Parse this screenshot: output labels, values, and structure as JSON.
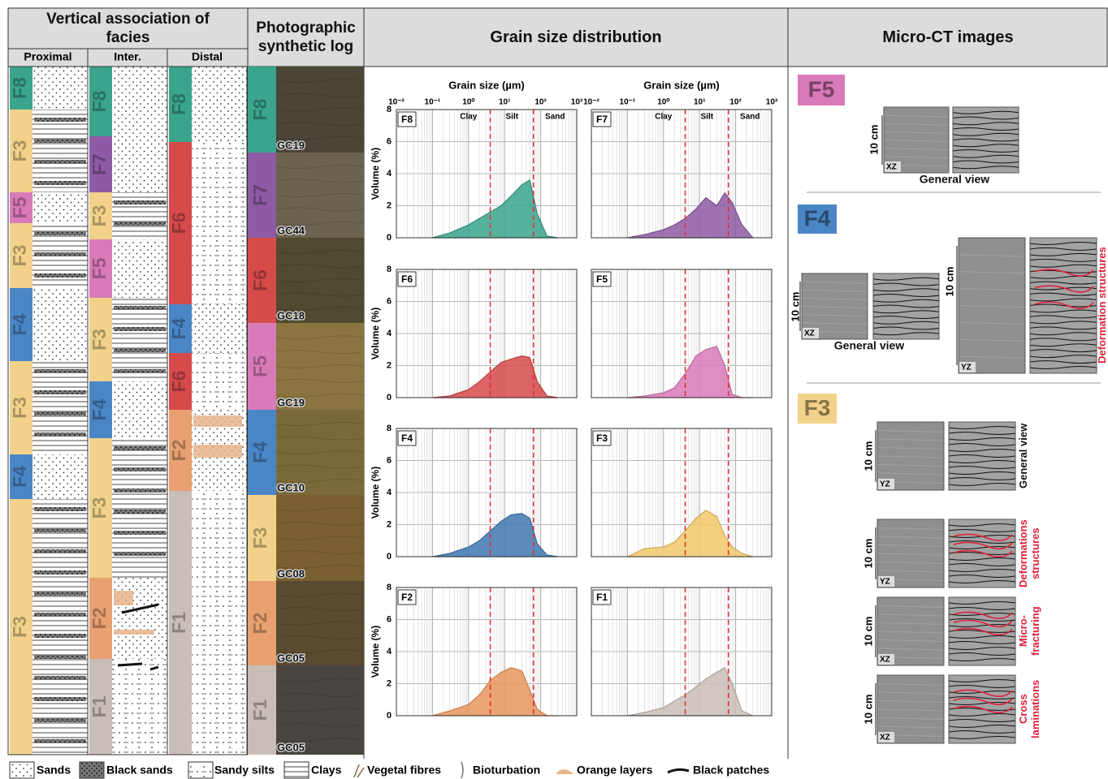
{
  "headers": {
    "facies": "Vertical association of facies",
    "photo": "Photographic synthetic log",
    "grain": "Grain size distribution",
    "microct": "Micro-CT images"
  },
  "facies_colors": {
    "F8": "#3aa58c",
    "F7": "#8e5aa5",
    "F6": "#d64a4a",
    "F5": "#d97ab8",
    "F4": "#4a86c5",
    "F3": "#f2d28a",
    "F2": "#e8a070",
    "F1": "#c9bdb8"
  },
  "facies_log": {
    "columns": [
      {
        "name": "Proximal",
        "units": [
          "F8",
          "F3",
          "F5",
          "F3",
          "F4",
          "F3",
          "F4",
          "F3"
        ]
      },
      {
        "name": "Inter.",
        "units": [
          "F8",
          "F7",
          "F3",
          "F5",
          "F3",
          "F4",
          "F3",
          "F2",
          "F1"
        ]
      },
      {
        "name": "Distal",
        "units": [
          "F8",
          "F6",
          "F4",
          "F6",
          "F2",
          "F1"
        ]
      }
    ]
  },
  "photo_log": {
    "units": [
      {
        "facies": "F8",
        "sample": "GC19"
      },
      {
        "facies": "F7",
        "sample": "GC44"
      },
      {
        "facies": "F6",
        "sample": "GC18"
      },
      {
        "facies": "F5",
        "sample": "GC19"
      },
      {
        "facies": "F4",
        "sample": "GC10"
      },
      {
        "facies": "F3",
        "sample": "GC08"
      },
      {
        "facies": "F2",
        "sample": "GC05"
      },
      {
        "facies": "F1",
        "sample": "GC05"
      }
    ]
  },
  "chart_data": [
    {
      "type": "area",
      "label": "F8",
      "color": "#3aa58c",
      "x_label": "Grain size (µm)",
      "y_label": "Volume (%)",
      "classes": [
        "Clay",
        "Silt",
        "Sand"
      ],
      "x": [
        0.1,
        0.3,
        1,
        2,
        4,
        8,
        15,
        30,
        50,
        80,
        150,
        300
      ],
      "values": [
        0,
        0.3,
        0.8,
        1.2,
        1.6,
        2.0,
        2.6,
        3.3,
        3.6,
        1.5,
        0.1,
        0
      ],
      "xlim": [
        0.01,
        1000
      ],
      "ylim": [
        0,
        8
      ],
      "log_x": true,
      "grid": true,
      "class_limits": [
        4,
        63
      ],
      "class_limit_color": "#e03030",
      "xticks": [
        {
          "value": 0.01,
          "label": "10⁻²"
        },
        {
          "value": 0.1,
          "label": "10⁻¹"
        },
        {
          "value": 1,
          "label": "10⁰"
        },
        {
          "value": 10,
          "label": "10¹"
        },
        {
          "value": 100,
          "label": "10²"
        },
        {
          "value": 1000,
          "label": "10³"
        }
      ],
      "yticks": [
        0,
        2,
        4,
        6,
        8
      ]
    },
    {
      "type": "area",
      "label": "F7",
      "color": "#8e5aa5",
      "x_label": "Grain size (µm)",
      "classes": [
        "Clay",
        "Silt",
        "Sand"
      ],
      "x": [
        0.1,
        0.3,
        1,
        2,
        4,
        8,
        15,
        30,
        50,
        80,
        150,
        300
      ],
      "values": [
        0,
        0.2,
        0.5,
        0.8,
        1.2,
        1.8,
        2.5,
        2.0,
        2.8,
        2.2,
        0.8,
        0
      ],
      "xlim": [
        0.01,
        1000
      ],
      "ylim": [
        0,
        8
      ],
      "log_x": true,
      "grid": true,
      "class_limits": [
        4,
        63
      ],
      "class_limit_color": "#e03030",
      "xticks": [
        {
          "value": 0.01,
          "label": "10⁻²"
        },
        {
          "value": 0.1,
          "label": "10⁻¹"
        },
        {
          "value": 1,
          "label": "10⁰"
        },
        {
          "value": 10,
          "label": "10¹"
        },
        {
          "value": 100,
          "label": "10²"
        },
        {
          "value": 1000,
          "label": "10³"
        }
      ],
      "yticks": [
        0,
        2,
        4,
        6,
        8
      ]
    },
    {
      "type": "area",
      "label": "F6",
      "color": "#d64a4a",
      "y_label": "Volume (%)",
      "x": [
        0.1,
        0.3,
        1,
        2,
        4,
        8,
        15,
        30,
        50,
        80,
        150,
        300
      ],
      "values": [
        0,
        0.1,
        0.5,
        1.0,
        1.6,
        2.2,
        2.4,
        2.6,
        2.5,
        1.0,
        0.1,
        0
      ],
      "xlim": [
        0.01,
        1000
      ],
      "ylim": [
        0,
        8
      ],
      "log_x": true,
      "grid": true,
      "class_limits": [
        4,
        63
      ],
      "class_limit_color": "#e03030",
      "xticks": [
        0.01,
        0.1,
        1,
        10,
        100,
        1000
      ],
      "yticks": [
        0,
        2,
        4,
        6,
        8
      ]
    },
    {
      "type": "area",
      "label": "F5",
      "color": "#d97ab8",
      "x": [
        0.1,
        0.3,
        1,
        2,
        4,
        8,
        15,
        30,
        50,
        80,
        150,
        300
      ],
      "values": [
        0,
        0.1,
        0.3,
        0.6,
        1.5,
        2.6,
        3.0,
        3.2,
        2.0,
        0.2,
        0,
        0
      ],
      "xlim": [
        0.01,
        1000
      ],
      "ylim": [
        0,
        8
      ],
      "log_x": true,
      "grid": true,
      "class_limits": [
        4,
        63
      ],
      "class_limit_color": "#e03030",
      "xticks": [
        0.01,
        0.1,
        1,
        10,
        100,
        1000
      ],
      "yticks": [
        0,
        2,
        4,
        6,
        8
      ]
    },
    {
      "type": "area",
      "label": "F4",
      "color": "#3f78b0",
      "y_label": "Volume (%)",
      "x": [
        0.1,
        0.3,
        1,
        2,
        4,
        8,
        15,
        30,
        50,
        80,
        150,
        300
      ],
      "values": [
        0,
        0.2,
        0.6,
        1.0,
        1.6,
        2.2,
        2.6,
        2.7,
        2.4,
        0.8,
        0.1,
        0
      ],
      "xlim": [
        0.01,
        1000
      ],
      "ylim": [
        0,
        8
      ],
      "log_x": true,
      "grid": true,
      "class_limits": [
        4,
        63
      ],
      "class_limit_color": "#e03030",
      "xticks": [
        0.01,
        0.1,
        1,
        10,
        100,
        1000
      ],
      "yticks": [
        0,
        2,
        4,
        6,
        8
      ]
    },
    {
      "type": "area",
      "label": "F3",
      "color": "#f2c96a",
      "x": [
        0.1,
        0.3,
        1,
        2,
        4,
        8,
        15,
        30,
        50,
        80,
        150,
        300
      ],
      "values": [
        0,
        0.5,
        0.6,
        0.9,
        1.6,
        2.4,
        2.9,
        2.5,
        1.3,
        0.6,
        0.2,
        0
      ],
      "xlim": [
        0.01,
        1000
      ],
      "ylim": [
        0,
        8
      ],
      "log_x": true,
      "grid": true,
      "class_limits": [
        4,
        63
      ],
      "class_limit_color": "#e03030",
      "xticks": [
        0.01,
        0.1,
        1,
        10,
        100,
        1000
      ],
      "yticks": [
        0,
        2,
        4,
        6,
        8
      ]
    },
    {
      "type": "area",
      "label": "F2",
      "color": "#e8965e",
      "y_label": "Volume (%)",
      "x": [
        0.1,
        0.3,
        1,
        2,
        4,
        8,
        15,
        30,
        50,
        80,
        150,
        300
      ],
      "values": [
        0,
        0.3,
        0.7,
        1.3,
        2.2,
        2.7,
        3.0,
        2.8,
        1.6,
        0.4,
        0,
        0
      ],
      "xlim": [
        0.01,
        1000
      ],
      "ylim": [
        0,
        8
      ],
      "log_x": true,
      "grid": true,
      "class_limits": [
        4,
        63
      ],
      "class_limit_color": "#e03030",
      "xticks": [
        0.01,
        0.1,
        1,
        10,
        100,
        1000
      ],
      "yticks": [
        0,
        2,
        4,
        6,
        8
      ]
    },
    {
      "type": "area",
      "label": "F1",
      "color": "#cbbdb8",
      "x": [
        0.1,
        0.3,
        1,
        2,
        4,
        8,
        15,
        30,
        50,
        80,
        150,
        300
      ],
      "values": [
        0,
        0.2,
        0.5,
        0.9,
        1.3,
        1.8,
        2.3,
        2.7,
        3.0,
        2.0,
        0.3,
        0
      ],
      "xlim": [
        0.01,
        1000
      ],
      "ylim": [
        0,
        8
      ],
      "log_x": true,
      "grid": true,
      "class_limits": [
        4,
        63
      ],
      "class_limit_color": "#e03030",
      "xticks": [
        0.01,
        0.1,
        1,
        10,
        100,
        1000
      ],
      "yticks": [
        0,
        2,
        4,
        6,
        8
      ]
    }
  ],
  "micro_ct": {
    "sections": [
      {
        "facies": "F5",
        "color": "#d97ab8",
        "panels": [
          {
            "scale": "10 cm",
            "plane": "XZ",
            "caption": "General view"
          }
        ]
      },
      {
        "facies": "F4",
        "color": "#4a86c5",
        "panels": [
          {
            "scale": "10 cm",
            "plane": "XZ",
            "caption": "General view"
          },
          {
            "scale": "10 cm",
            "plane": "YZ",
            "caption": "Deformation structures",
            "caption_color": "#e0203a"
          }
        ]
      },
      {
        "facies": "F3",
        "color": "#f2d28a",
        "panels": [
          {
            "scale": "10 cm",
            "plane": "YZ",
            "caption": "General view"
          },
          {
            "scale": "10 cm",
            "plane": "YZ",
            "caption": "Deformations structures",
            "caption_color": "#e0203a"
          },
          {
            "scale": "10 cm",
            "plane": "XZ",
            "caption": "Micro-fracturing",
            "caption_color": "#e0203a"
          },
          {
            "scale": "10 cm",
            "plane": "XZ",
            "caption": "Cross laminations",
            "caption_color": "#e0203a"
          }
        ]
      }
    ]
  },
  "legend": [
    "Sands",
    "Black sands",
    "Sandy silts",
    "Clays",
    "Vegetal fibres",
    "Bioturbation",
    "Orange layers",
    "Black patches"
  ]
}
